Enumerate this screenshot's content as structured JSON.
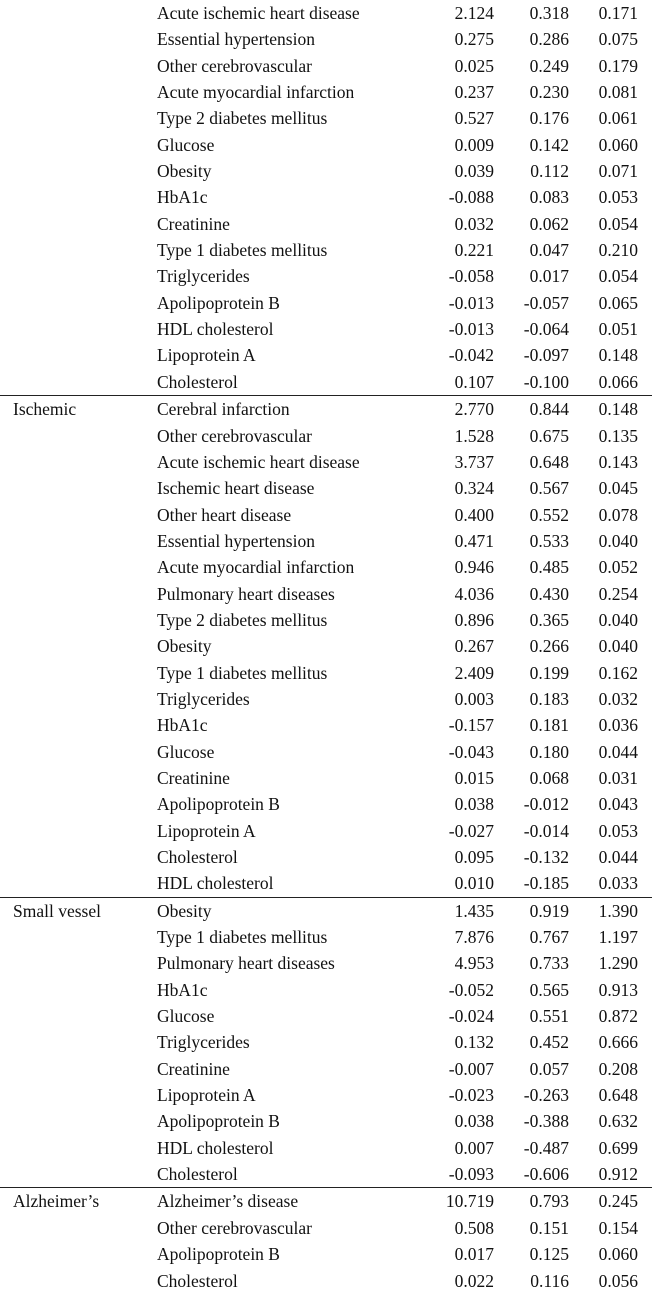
{
  "table": {
    "sections": [
      {
        "group": "",
        "rows": [
          {
            "name": "Acute ischemic heart disease",
            "v1": "2.124",
            "v2": "0.318",
            "v3": "0.171"
          },
          {
            "name": "Essential hypertension",
            "v1": "0.275",
            "v2": "0.286",
            "v3": "0.075"
          },
          {
            "name": "Other cerebrovascular",
            "v1": "0.025",
            "v2": "0.249",
            "v3": "0.179"
          },
          {
            "name": "Acute myocardial infarction",
            "v1": "0.237",
            "v2": "0.230",
            "v3": "0.081"
          },
          {
            "name": "Type 2 diabetes mellitus",
            "v1": "0.527",
            "v2": "0.176",
            "v3": "0.061"
          },
          {
            "name": "Glucose",
            "v1": "0.009",
            "v2": "0.142",
            "v3": "0.060"
          },
          {
            "name": "Obesity",
            "v1": "0.039",
            "v2": "0.112",
            "v3": "0.071"
          },
          {
            "name": "HbA1c",
            "v1": "-0.088",
            "v2": "0.083",
            "v3": "0.053"
          },
          {
            "name": "Creatinine",
            "v1": "0.032",
            "v2": "0.062",
            "v3": "0.054"
          },
          {
            "name": "Type 1 diabetes mellitus",
            "v1": "0.221",
            "v2": "0.047",
            "v3": "0.210"
          },
          {
            "name": "Triglycerides",
            "v1": "-0.058",
            "v2": "0.017",
            "v3": "0.054"
          },
          {
            "name": "Apolipoprotein B",
            "v1": "-0.013",
            "v2": "-0.057",
            "v3": "0.065"
          },
          {
            "name": "HDL cholesterol",
            "v1": "-0.013",
            "v2": "-0.064",
            "v3": "0.051"
          },
          {
            "name": "Lipoprotein A",
            "v1": "-0.042",
            "v2": "-0.097",
            "v3": "0.148"
          },
          {
            "name": "Cholesterol",
            "v1": "0.107",
            "v2": "-0.100",
            "v3": "0.066"
          }
        ]
      },
      {
        "group": "Ischemic",
        "rows": [
          {
            "name": "Cerebral infarction",
            "v1": "2.770",
            "v2": "0.844",
            "v3": "0.148"
          },
          {
            "name": "Other cerebrovascular",
            "v1": "1.528",
            "v2": "0.675",
            "v3": "0.135"
          },
          {
            "name": "Acute ischemic heart disease",
            "v1": "3.737",
            "v2": "0.648",
            "v3": "0.143"
          },
          {
            "name": "Ischemic heart disease",
            "v1": "0.324",
            "v2": "0.567",
            "v3": "0.045"
          },
          {
            "name": "Other heart disease",
            "v1": "0.400",
            "v2": "0.552",
            "v3": "0.078"
          },
          {
            "name": "Essential hypertension",
            "v1": "0.471",
            "v2": "0.533",
            "v3": "0.040"
          },
          {
            "name": "Acute myocardial infarction",
            "v1": "0.946",
            "v2": "0.485",
            "v3": "0.052"
          },
          {
            "name": "Pulmonary heart diseases",
            "v1": "4.036",
            "v2": "0.430",
            "v3": "0.254"
          },
          {
            "name": "Type 2 diabetes mellitus",
            "v1": "0.896",
            "v2": "0.365",
            "v3": "0.040"
          },
          {
            "name": "Obesity",
            "v1": "0.267",
            "v2": "0.266",
            "v3": "0.040"
          },
          {
            "name": "Type 1 diabetes mellitus",
            "v1": "2.409",
            "v2": "0.199",
            "v3": "0.162"
          },
          {
            "name": "Triglycerides",
            "v1": "0.003",
            "v2": "0.183",
            "v3": "0.032"
          },
          {
            "name": "HbA1c",
            "v1": "-0.157",
            "v2": "0.181",
            "v3": "0.036"
          },
          {
            "name": "Glucose",
            "v1": "-0.043",
            "v2": "0.180",
            "v3": "0.044"
          },
          {
            "name": "Creatinine",
            "v1": "0.015",
            "v2": "0.068",
            "v3": "0.031"
          },
          {
            "name": "Apolipoprotein B",
            "v1": "0.038",
            "v2": "-0.012",
            "v3": "0.043"
          },
          {
            "name": "Lipoprotein A",
            "v1": "-0.027",
            "v2": "-0.014",
            "v3": "0.053"
          },
          {
            "name": "Cholesterol",
            "v1": "0.095",
            "v2": "-0.132",
            "v3": "0.044"
          },
          {
            "name": "HDL cholesterol",
            "v1": "0.010",
            "v2": "-0.185",
            "v3": "0.033"
          }
        ]
      },
      {
        "group": "Small vessel",
        "rows": [
          {
            "name": "Obesity",
            "v1": "1.435",
            "v2": "0.919",
            "v3": "1.390"
          },
          {
            "name": "Type 1 diabetes mellitus",
            "v1": "7.876",
            "v2": "0.767",
            "v3": "1.197"
          },
          {
            "name": "Pulmonary heart diseases",
            "v1": "4.953",
            "v2": "0.733",
            "v3": "1.290"
          },
          {
            "name": "HbA1c",
            "v1": "-0.052",
            "v2": "0.565",
            "v3": "0.913"
          },
          {
            "name": "Glucose",
            "v1": "-0.024",
            "v2": "0.551",
            "v3": "0.872"
          },
          {
            "name": "Triglycerides",
            "v1": "0.132",
            "v2": "0.452",
            "v3": "0.666"
          },
          {
            "name": "Creatinine",
            "v1": "-0.007",
            "v2": "0.057",
            "v3": "0.208"
          },
          {
            "name": "Lipoprotein A",
            "v1": "-0.023",
            "v2": "-0.263",
            "v3": "0.648"
          },
          {
            "name": "Apolipoprotein B",
            "v1": "0.038",
            "v2": "-0.388",
            "v3": "0.632"
          },
          {
            "name": "HDL cholesterol",
            "v1": "0.007",
            "v2": "-0.487",
            "v3": "0.699"
          },
          {
            "name": "Cholesterol",
            "v1": "-0.093",
            "v2": "-0.606",
            "v3": "0.912"
          }
        ]
      },
      {
        "group": "Alzheimer’s",
        "rows": [
          {
            "name": "Alzheimer’s disease",
            "v1": "10.719",
            "v2": "0.793",
            "v3": "0.245"
          },
          {
            "name": "Other cerebrovascular",
            "v1": "0.508",
            "v2": "0.151",
            "v3": "0.154"
          },
          {
            "name": "Apolipoprotein B",
            "v1": "0.017",
            "v2": "0.125",
            "v3": "0.060"
          },
          {
            "name": "Cholesterol",
            "v1": "0.022",
            "v2": "0.116",
            "v3": "0.056"
          }
        ]
      }
    ]
  }
}
